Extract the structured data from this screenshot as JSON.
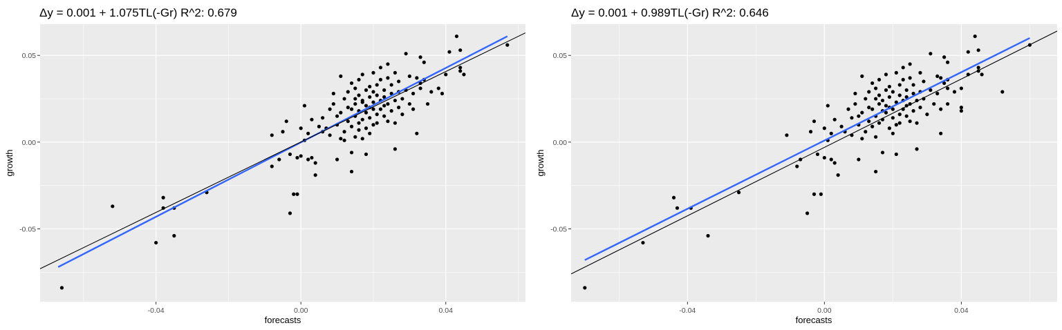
{
  "chart_data": [
    {
      "type": "scatter",
      "title": "Δy = 0.001 + 1.075TL(-Gr) R^2: 0.679",
      "xlabel": "forecasts",
      "ylabel": "growth",
      "xlim": [
        -0.072,
        0.062
      ],
      "ylim": [
        -0.092,
        0.068
      ],
      "xticks": [
        -0.04,
        0.0,
        0.04
      ],
      "xtick_labels": [
        "-0.04",
        "0.00",
        "0.04"
      ],
      "yticks": [
        -0.05,
        0.0,
        0.05
      ],
      "ytick_labels": [
        "-0.05",
        "0.00",
        "0.05"
      ],
      "grid": true,
      "points": [
        [
          -0.066,
          -0.084
        ],
        [
          -0.052,
          -0.037
        ],
        [
          -0.04,
          -0.058
        ],
        [
          -0.038,
          -0.038
        ],
        [
          -0.038,
          -0.032
        ],
        [
          -0.035,
          -0.054
        ],
        [
          -0.035,
          -0.038
        ],
        [
          -0.026,
          -0.029
        ],
        [
          -0.008,
          -0.014
        ],
        [
          -0.008,
          0.004
        ],
        [
          -0.006,
          -0.01
        ],
        [
          -0.005,
          0.006
        ],
        [
          -0.004,
          0.012
        ],
        [
          -0.003,
          -0.041
        ],
        [
          -0.003,
          -0.007
        ],
        [
          -0.002,
          -0.03
        ],
        [
          -0.001,
          -0.009
        ],
        [
          -0.001,
          -0.03
        ],
        [
          0.0,
          -0.008
        ],
        [
          0.0,
          0.008
        ],
        [
          0.001,
          0.001
        ],
        [
          0.001,
          0.021
        ],
        [
          0.002,
          0.005
        ],
        [
          0.002,
          -0.01
        ],
        [
          0.003,
          -0.009
        ],
        [
          0.003,
          0.013
        ],
        [
          0.004,
          -0.012
        ],
        [
          0.004,
          -0.019
        ],
        [
          0.005,
          0.009
        ],
        [
          0.006,
          0.006
        ],
        [
          0.006,
          0.014
        ],
        [
          0.007,
          0.008
        ],
        [
          0.008,
          0.019
        ],
        [
          0.008,
          0.004
        ],
        [
          0.009,
          0.022
        ],
        [
          0.009,
          0.028
        ],
        [
          0.01,
          0.015
        ],
        [
          0.01,
          0.01
        ],
        [
          0.01,
          -0.01
        ],
        [
          0.011,
          0.038
        ],
        [
          0.011,
          0.002
        ],
        [
          0.011,
          0.017
        ],
        [
          0.012,
          0.025
        ],
        [
          0.012,
          0.006
        ],
        [
          0.012,
          0.001
        ],
        [
          0.013,
          0.02
        ],
        [
          0.013,
          0.029
        ],
        [
          0.013,
          0.012
        ],
        [
          0.014,
          0.034
        ],
        [
          0.014,
          -0.006
        ],
        [
          0.014,
          0.019
        ],
        [
          0.014,
          0.009
        ],
        [
          0.014,
          -0.017
        ],
        [
          0.015,
          0.025
        ],
        [
          0.015,
          0.031
        ],
        [
          0.015,
          0.003
        ],
        [
          0.015,
          0.015
        ],
        [
          0.015,
          0.022
        ],
        [
          0.016,
          0.027
        ],
        [
          0.016,
          0.011
        ],
        [
          0.016,
          0.007
        ],
        [
          0.016,
          0.036
        ],
        [
          0.016,
          0.018
        ],
        [
          0.017,
          0.024
        ],
        [
          0.017,
          0.023
        ],
        [
          0.017,
          0.013
        ],
        [
          0.017,
          0.002
        ],
        [
          0.017,
          0.039
        ],
        [
          0.018,
          0.03
        ],
        [
          0.018,
          0.017
        ],
        [
          0.018,
          0.021
        ],
        [
          0.018,
          0.008
        ],
        [
          0.018,
          -0.007
        ],
        [
          0.019,
          0.032
        ],
        [
          0.019,
          0.026
        ],
        [
          0.019,
          0.02
        ],
        [
          0.019,
          0.005
        ],
        [
          0.019,
          0.014
        ],
        [
          0.02,
          0.029
        ],
        [
          0.02,
          0.019
        ],
        [
          0.02,
          0.01
        ],
        [
          0.02,
          0.04
        ],
        [
          0.02,
          0.023
        ],
        [
          0.021,
          0.033
        ],
        [
          0.021,
          0.016
        ],
        [
          0.021,
          0.027
        ],
        [
          0.021,
          0.011
        ],
        [
          0.022,
          0.024
        ],
        [
          0.022,
          0.019
        ],
        [
          0.022,
          0.036
        ],
        [
          0.022,
          0.043
        ],
        [
          0.023,
          0.021
        ],
        [
          0.023,
          0.03
        ],
        [
          0.023,
          0.015
        ],
        [
          0.023,
          0.026
        ],
        [
          0.024,
          0.037
        ],
        [
          0.024,
          0.012
        ],
        [
          0.024,
          0.022
        ],
        [
          0.024,
          0.045
        ],
        [
          0.025,
          0.028
        ],
        [
          0.025,
          0.018
        ],
        [
          0.025,
          0.033
        ],
        [
          0.026,
          0.024
        ],
        [
          0.026,
          0.011
        ],
        [
          0.026,
          -0.004
        ],
        [
          0.026,
          0.04
        ],
        [
          0.027,
          0.029
        ],
        [
          0.027,
          0.02
        ],
        [
          0.027,
          0.035
        ],
        [
          0.028,
          0.025
        ],
        [
          0.028,
          0.016
        ],
        [
          0.029,
          0.051
        ],
        [
          0.029,
          0.03
        ],
        [
          0.03,
          0.022
        ],
        [
          0.03,
          0.038
        ],
        [
          0.031,
          0.028
        ],
        [
          0.031,
          0.019
        ],
        [
          0.032,
          0.037
        ],
        [
          0.032,
          0.005
        ],
        [
          0.033,
          0.049
        ],
        [
          0.033,
          0.034
        ],
        [
          0.033,
          0.031
        ],
        [
          0.034,
          0.046
        ],
        [
          0.034,
          0.036
        ],
        [
          0.035,
          0.022
        ],
        [
          0.036,
          0.029
        ],
        [
          0.038,
          0.031
        ],
        [
          0.039,
          0.028
        ],
        [
          0.04,
          0.039
        ],
        [
          0.041,
          0.052
        ],
        [
          0.043,
          0.061
        ],
        [
          0.044,
          0.053
        ],
        [
          0.044,
          0.043
        ],
        [
          0.044,
          0.041
        ],
        [
          0.045,
          0.039
        ],
        [
          0.057,
          0.056
        ]
      ],
      "series": [
        {
          "values": [
            [
              -0.067,
              -0.072
            ],
            [
              0.057,
              0.061
            ]
          ],
          "color": "#3366ff"
        },
        {
          "values": [
            [
              -0.072,
              -0.073
            ],
            [
              0.062,
              0.063
            ]
          ],
          "color": "#000000"
        }
      ],
      "colors": {
        "panel": "#ebebeb",
        "grid": "#ffffff",
        "points": "#000000"
      }
    },
    {
      "type": "scatter",
      "title": "Δy = 0.001 + 0.989TL(-Gr) R^2: 0.646",
      "xlabel": "forecasts",
      "ylabel": "growth",
      "xlim": [
        -0.074,
        0.068
      ],
      "ylim": [
        -0.092,
        0.068
      ],
      "xticks": [
        -0.04,
        0.0,
        0.04
      ],
      "xtick_labels": [
        "-0.04",
        "0.00",
        "0.04"
      ],
      "yticks": [
        -0.05,
        0.0,
        0.05
      ],
      "ytick_labels": [
        "-0.05",
        "0.00",
        "0.05"
      ],
      "grid": true,
      "points": [
        [
          -0.07,
          -0.084
        ],
        [
          -0.053,
          -0.058
        ],
        [
          -0.044,
          -0.032
        ],
        [
          -0.043,
          -0.038
        ],
        [
          -0.039,
          -0.038
        ],
        [
          -0.034,
          -0.054
        ],
        [
          -0.025,
          -0.029
        ],
        [
          -0.011,
          0.004
        ],
        [
          -0.008,
          -0.014
        ],
        [
          -0.007,
          -0.01
        ],
        [
          -0.005,
          -0.041
        ],
        [
          -0.004,
          0.006
        ],
        [
          -0.003,
          -0.03
        ],
        [
          -0.003,
          0.012
        ],
        [
          -0.002,
          -0.007
        ],
        [
          -0.001,
          -0.03
        ],
        [
          0.0,
          -0.009
        ],
        [
          0.0,
          0.008
        ],
        [
          0.001,
          0.021
        ],
        [
          0.001,
          0.001
        ],
        [
          0.002,
          0.005
        ],
        [
          0.002,
          -0.01
        ],
        [
          0.003,
          -0.012
        ],
        [
          0.003,
          0.013
        ],
        [
          0.004,
          -0.019
        ],
        [
          0.005,
          0.009
        ],
        [
          0.006,
          0.006
        ],
        [
          0.007,
          0.019
        ],
        [
          0.008,
          0.014
        ],
        [
          0.008,
          0.004
        ],
        [
          0.009,
          0.022
        ],
        [
          0.009,
          0.028
        ],
        [
          0.01,
          0.015
        ],
        [
          0.01,
          0.01
        ],
        [
          0.01,
          -0.01
        ],
        [
          0.011,
          0.038
        ],
        [
          0.011,
          0.002
        ],
        [
          0.011,
          0.017
        ],
        [
          0.012,
          0.025
        ],
        [
          0.012,
          0.006
        ],
        [
          0.013,
          0.02
        ],
        [
          0.013,
          0.029
        ],
        [
          0.013,
          0.012
        ],
        [
          0.014,
          0.034
        ],
        [
          0.014,
          0.019
        ],
        [
          0.014,
          0.009
        ],
        [
          0.015,
          0.025
        ],
        [
          0.015,
          0.031
        ],
        [
          0.015,
          0.003
        ],
        [
          0.015,
          0.015
        ],
        [
          0.015,
          -0.017
        ],
        [
          0.016,
          0.022
        ],
        [
          0.016,
          0.027
        ],
        [
          0.016,
          0.011
        ],
        [
          0.016,
          0.036
        ],
        [
          0.017,
          0.018
        ],
        [
          0.017,
          0.024
        ],
        [
          0.017,
          0.013
        ],
        [
          0.017,
          -0.006
        ],
        [
          0.018,
          0.039
        ],
        [
          0.018,
          0.03
        ],
        [
          0.018,
          0.017
        ],
        [
          0.018,
          0.021
        ],
        [
          0.019,
          0.008
        ],
        [
          0.019,
          0.032
        ],
        [
          0.019,
          0.026
        ],
        [
          0.019,
          0.02
        ],
        [
          0.02,
          0.005
        ],
        [
          0.02,
          0.014
        ],
        [
          0.02,
          0.029
        ],
        [
          0.02,
          0.019
        ],
        [
          0.021,
          0.01
        ],
        [
          0.021,
          0.04
        ],
        [
          0.021,
          0.023
        ],
        [
          0.021,
          -0.007
        ],
        [
          0.022,
          0.033
        ],
        [
          0.022,
          0.016
        ],
        [
          0.022,
          0.027
        ],
        [
          0.022,
          0.011
        ],
        [
          0.023,
          0.024
        ],
        [
          0.023,
          0.019
        ],
        [
          0.023,
          0.036
        ],
        [
          0.023,
          0.043
        ],
        [
          0.024,
          0.021
        ],
        [
          0.024,
          0.03
        ],
        [
          0.024,
          0.015
        ],
        [
          0.024,
          0.026
        ],
        [
          0.025,
          0.037
        ],
        [
          0.025,
          0.012
        ],
        [
          0.025,
          0.022
        ],
        [
          0.025,
          0.045
        ],
        [
          0.026,
          0.028
        ],
        [
          0.026,
          0.018
        ],
        [
          0.026,
          0.033
        ],
        [
          0.027,
          0.024
        ],
        [
          0.027,
          0.011
        ],
        [
          0.027,
          -0.004
        ],
        [
          0.028,
          0.04
        ],
        [
          0.028,
          0.029
        ],
        [
          0.028,
          0.02
        ],
        [
          0.029,
          0.035
        ],
        [
          0.029,
          0.025
        ],
        [
          0.03,
          0.016
        ],
        [
          0.031,
          0.051
        ],
        [
          0.031,
          0.03
        ],
        [
          0.032,
          0.022
        ],
        [
          0.033,
          0.038
        ],
        [
          0.033,
          0.028
        ],
        [
          0.034,
          0.019
        ],
        [
          0.034,
          0.037
        ],
        [
          0.034,
          0.005
        ],
        [
          0.035,
          0.049
        ],
        [
          0.035,
          0.034
        ],
        [
          0.036,
          0.031
        ],
        [
          0.036,
          0.046
        ],
        [
          0.036,
          0.036
        ],
        [
          0.036,
          0.022
        ],
        [
          0.038,
          0.029
        ],
        [
          0.04,
          0.031
        ],
        [
          0.04,
          0.02
        ],
        [
          0.04,
          0.018
        ],
        [
          0.042,
          0.039
        ],
        [
          0.042,
          0.052
        ],
        [
          0.044,
          0.061
        ],
        [
          0.045,
          0.053
        ],
        [
          0.045,
          0.043
        ],
        [
          0.045,
          0.041
        ],
        [
          0.046,
          0.039
        ],
        [
          0.052,
          0.029
        ],
        [
          0.06,
          0.056
        ]
      ],
      "series": [
        {
          "values": [
            [
              -0.07,
              -0.068
            ],
            [
              0.06,
              0.06
            ]
          ],
          "color": "#3366ff"
        },
        {
          "values": [
            [
              -0.074,
              -0.076
            ],
            [
              0.068,
              0.064
            ]
          ],
          "color": "#000000"
        }
      ],
      "colors": {
        "panel": "#ebebeb",
        "grid": "#ffffff",
        "points": "#000000"
      }
    }
  ]
}
